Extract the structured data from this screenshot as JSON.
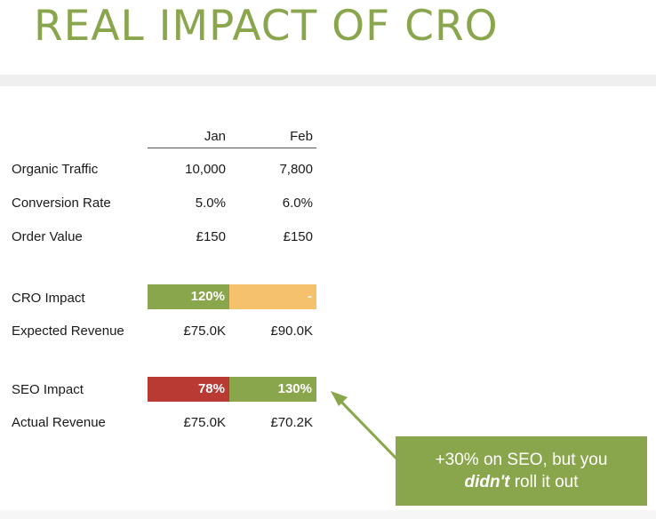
{
  "slide": {
    "title": "REAL IMPACT OF CRO"
  },
  "table": {
    "columns": [
      "Jan",
      "Feb"
    ],
    "rows": [
      {
        "label": "Organic Traffic",
        "jan": "10,000",
        "feb": "7,800"
      },
      {
        "label": "Conversion Rate",
        "jan": "5.0%",
        "feb": "6.0%"
      },
      {
        "label": "Order Value",
        "jan": "£150",
        "feb": "£150"
      },
      {
        "label": "CRO Impact",
        "jan": "120%",
        "feb": "-",
        "jan_color": "#8aa64c",
        "feb_color": "#f5c16c"
      },
      {
        "label": "Expected Revenue",
        "jan": "£75.0K",
        "feb": "£90.0K"
      },
      {
        "label": "SEO Impact",
        "jan": "78%",
        "feb": "130%",
        "jan_color": "#b83a33",
        "feb_color": "#8aa64c"
      },
      {
        "label": "Actual Revenue",
        "jan": "£75.0K",
        "feb": "£70.2K"
      }
    ]
  },
  "callout": {
    "line1": "+30% on SEO, but you",
    "emphasis": "didn't",
    "line2_rest": " roll it out",
    "color": "#8aa64c"
  },
  "colors": {
    "accent": "#8aa64c",
    "negative": "#b83a33",
    "neutral": "#f5c16c"
  }
}
